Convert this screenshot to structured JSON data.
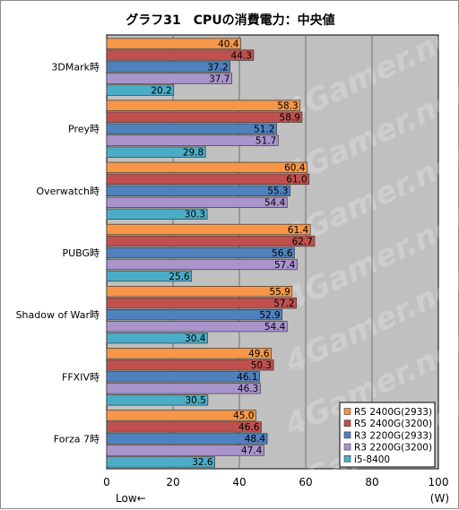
{
  "chart_data": {
    "type": "bar",
    "orientation": "horizontal",
    "title": "グラフ31　CPUの消費電力：中央値",
    "categories": [
      "3DMark時",
      "Prey時",
      "Overwatch時",
      "PUBG時",
      "Shadow of War時",
      "FFXIV時",
      "Forza 7時"
    ],
    "series": [
      {
        "name": "R5 2400G(2933)",
        "color": "#f79646",
        "values": [
          40.4,
          58.3,
          60.4,
          61.4,
          55.9,
          49.6,
          45.0
        ]
      },
      {
        "name": "R5 2400G(3200)",
        "color": "#c0504d",
        "values": [
          44.3,
          58.9,
          61.0,
          62.7,
          57.2,
          50.3,
          46.6
        ]
      },
      {
        "name": "R3 2200G(2933)",
        "color": "#4f81bd",
        "values": [
          37.2,
          51.2,
          55.3,
          56.6,
          52.9,
          46.1,
          48.4
        ]
      },
      {
        "name": "R3 2200G(3200)",
        "color": "#a994cc",
        "values": [
          37.7,
          51.7,
          54.4,
          57.4,
          54.4,
          46.3,
          47.4
        ]
      },
      {
        "name": "i5-8400",
        "color": "#4bacc6",
        "values": [
          20.2,
          29.8,
          30.3,
          25.6,
          30.4,
          30.5,
          32.6
        ]
      }
    ],
    "xlim": [
      0,
      100
    ],
    "xticks": [
      0,
      20,
      40,
      60,
      80,
      100
    ],
    "xunit": "(W)",
    "low_label": "Low←",
    "grid": true,
    "legend_position": "bottom-right",
    "watermark": "4Gamer.net"
  }
}
